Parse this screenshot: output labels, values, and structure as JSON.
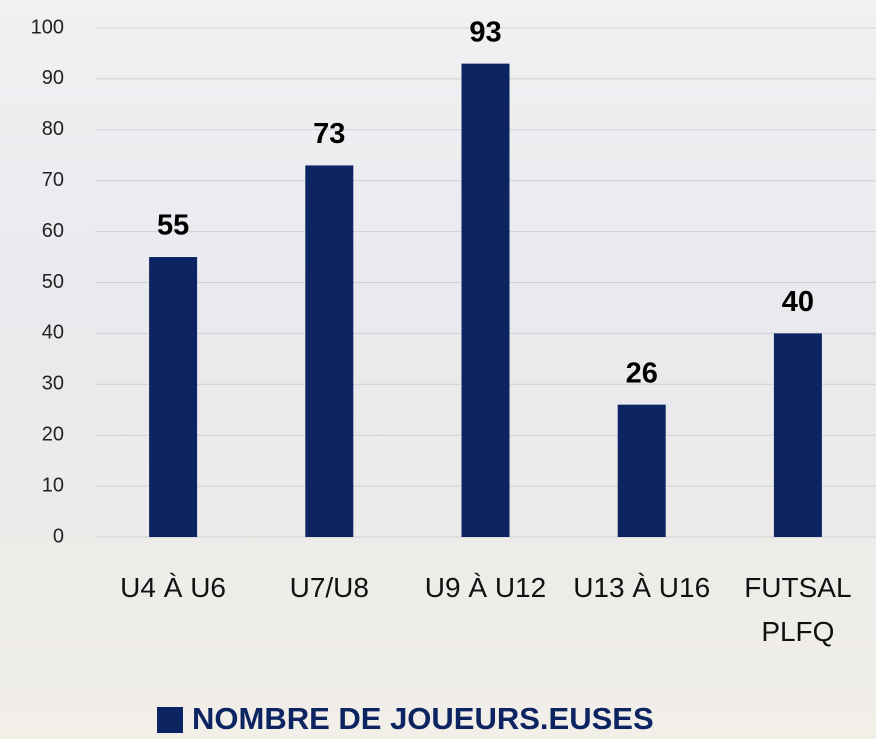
{
  "chart_data": {
    "type": "bar",
    "categories": [
      "U4 À U6",
      "U7/U8",
      "U9 À U12",
      "U13 À U16",
      "FUTSAL PLFQ"
    ],
    "series": [
      {
        "name": "NOMBRE DE JOUEURS.EUSES",
        "color": "#0c2461",
        "values": [
          55,
          73,
          93,
          26,
          40
        ]
      }
    ],
    "ylim": [
      0,
      100
    ],
    "yticks": [
      0,
      10,
      20,
      30,
      40,
      50,
      60,
      70,
      80,
      90,
      100
    ],
    "grid": true,
    "legend": "bottom"
  }
}
